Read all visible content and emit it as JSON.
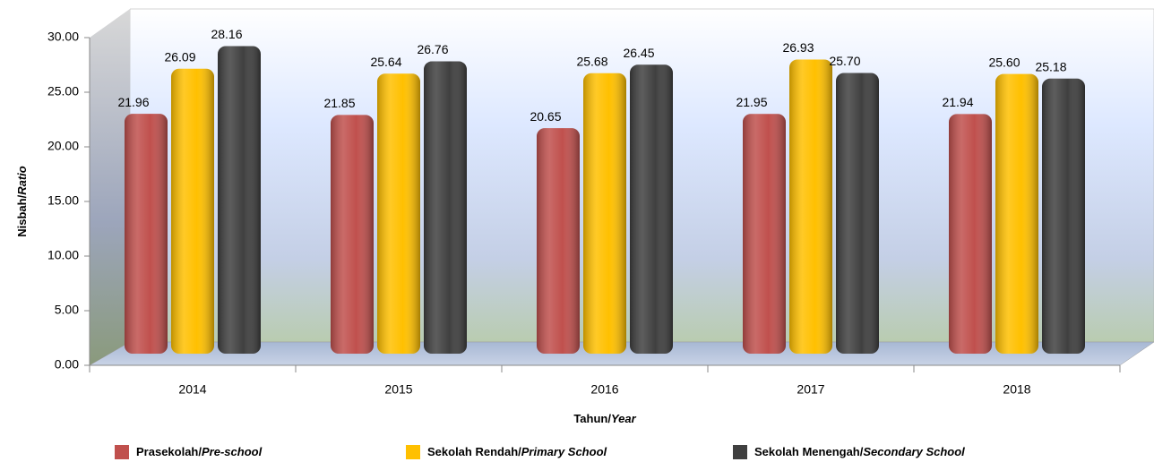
{
  "chart_data": {
    "type": "bar",
    "x_label": "Tahun/Year",
    "y_label": "Nisbah/Ratio",
    "categories": [
      "2014",
      "2015",
      "2016",
      "2017",
      "2018"
    ],
    "series": [
      {
        "name": "Prasekolah/Pre-school",
        "color": "#c0504d",
        "values": [
          21.96,
          21.85,
          20.65,
          21.95,
          21.94
        ],
        "value_labels": [
          "21.96",
          "21.85",
          "20.65",
          "21.95",
          "21.94"
        ]
      },
      {
        "name": "Sekolah Rendah/Primary School",
        "color": "#ffc000",
        "values": [
          26.09,
          25.64,
          25.68,
          26.93,
          25.6
        ],
        "value_labels": [
          "26.09",
          "25.64",
          "25.68",
          "26.93",
          "25.60"
        ]
      },
      {
        "name": "Sekolah Menengah/Secondary School",
        "color": "#404040",
        "values": [
          28.16,
          26.76,
          26.45,
          25.7,
          25.18
        ],
        "value_labels": [
          "28.16",
          "26.76",
          "26.45",
          "25.70",
          "25.18"
        ]
      }
    ],
    "ylim": [
      0,
      30
    ],
    "yticks": [
      {
        "value": 0,
        "label": "0.00"
      },
      {
        "value": 5,
        "label": "5.00"
      },
      {
        "value": 10,
        "label": "10.00"
      },
      {
        "value": 15,
        "label": "15.00"
      },
      {
        "value": 20,
        "label": "20.00"
      },
      {
        "value": 25,
        "label": "25.00"
      },
      {
        "value": 30,
        "label": "30.00"
      }
    ],
    "legend": "bottom"
  }
}
